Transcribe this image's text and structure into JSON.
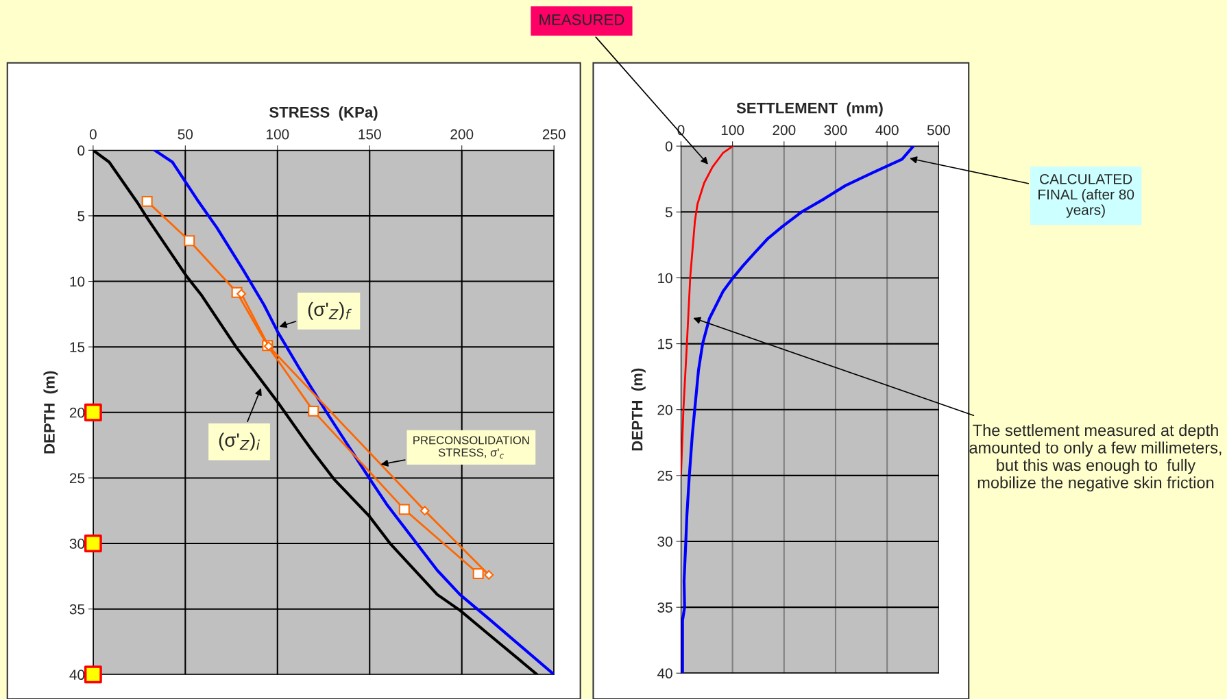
{
  "chart_data": [
    {
      "type": "line",
      "xlabel": "STRESS  (KPa)",
      "ylabel": "DEPTH  (m)",
      "xlim": [
        0,
        250
      ],
      "xticks": [
        0,
        50,
        100,
        150,
        200,
        250
      ],
      "ylim": [
        40,
        0
      ],
      "yticks": [
        0,
        5,
        10,
        15,
        20,
        25,
        30,
        35,
        40
      ],
      "grid": true,
      "legend": false,
      "series": [
        {
          "color": "#000000",
          "marker": "none",
          "x": [
            0,
            8.7,
            24.3,
            29,
            50.9,
            58.5,
            77.5,
            100.3,
            113.6,
            119.3,
            130.7,
            149.7,
            161.1,
            186.7,
            199,
            214.3,
            232.3,
            240.8
          ],
          "values": [
            0,
            0.9,
            4.05,
            5.1,
            9.65,
            11,
            15,
            19.25,
            21.9,
            23,
            25.1,
            27.9,
            30,
            33.9,
            35.1,
            36.9,
            39,
            40
          ]
        },
        {
          "color": "#0000ff",
          "marker": "none",
          "x": [
            33.4,
            43,
            56.6,
            67.1,
            81.3,
            92.7,
            100.3,
            111.7,
            126.9,
            149.7,
            159.2,
            170.6,
            186.7,
            199,
            214.3,
            250
          ],
          "values": [
            0,
            0.9,
            3.8,
            5.9,
            9.1,
            11.8,
            13.9,
            16.6,
            20.05,
            25,
            27,
            29.1,
            32.05,
            33.9,
            35.7,
            40
          ]
        },
        {
          "color": "#ff6600",
          "marker": "square",
          "x": [
            29.3,
            52.2,
            78,
            94.6,
            119.5,
            168.8,
            208.9
          ],
          "values": [
            3.9,
            6.9,
            10.85,
            14.9,
            19.9,
            27.4,
            32.3
          ]
        },
        {
          "color": "#ff6600",
          "marker": "diamond",
          "x": [
            80.4,
            95.2,
            179.9,
            214.7
          ],
          "values": [
            10.95,
            14.95,
            27.5,
            32.4
          ]
        },
        {
          "type": "scatter",
          "color": "#ffff00",
          "marker": "square",
          "x": [
            0,
            0,
            0
          ],
          "values": [
            20,
            30,
            40
          ]
        }
      ],
      "annotations": [
        {
          "text": "(σ'$_{Z}$)$_{f}$",
          "x": 100,
          "y": 13.5
        },
        {
          "text": "(σ'$_{Z}$)$_{i}$",
          "x": 91.5,
          "y": 18
        },
        {
          "text": "PRECONSOLIDATION\nSTRESS, σ'$_{c}$",
          "x": 155,
          "y": 24
        }
      ]
    },
    {
      "type": "line",
      "xlabel": "SETTLEMENT  (mm)",
      "ylabel": "DEPTH  (m)",
      "xlim": [
        0,
        500
      ],
      "xticks": [
        0,
        100,
        200,
        300,
        400,
        500
      ],
      "ylim": [
        40,
        0
      ],
      "yticks": [
        0,
        5,
        10,
        15,
        20,
        25,
        30,
        35,
        40
      ],
      "grid": true,
      "legend": false,
      "series": [
        {
          "color": "#ff0000",
          "marker": "none",
          "x": [
            101,
            82,
            61,
            45,
            32,
            27,
            18,
            11.5,
            4.7,
            0
          ],
          "values": [
            0,
            0.5,
            1.6,
            2.8,
            4.4,
            5.7,
            9.9,
            15,
            20,
            25
          ]
        },
        {
          "color": "#0000ff",
          "marker": "none",
          "x": [
            451,
            429,
            373,
            319,
            278,
            234,
            197,
            169,
            143,
            120,
            99,
            82,
            55,
            42,
            34,
            22,
            16,
            11.5,
            9.5,
            6,
            7,
            3,
            3
          ],
          "values": [
            0,
            1,
            2,
            3,
            4,
            5,
            6.1,
            7,
            8.1,
            9.1,
            10.1,
            11,
            13.1,
            15,
            17,
            21.9,
            25.1,
            28,
            29.9,
            33,
            35,
            36,
            40
          ]
        }
      ],
      "annotations": [
        {
          "text": "MEASURED",
          "x": 55,
          "y": 1.5
        },
        {
          "text": "CALCULATED\nFINAL (after 80\nyears)",
          "x": 440,
          "y": 0.9
        },
        {
          "text": "The settlement measured at depth amounted to only a few millimeters, but this was enough to  fully mobilize the negative skin friction",
          "x": 20,
          "y": 13
        }
      ]
    }
  ]
}
